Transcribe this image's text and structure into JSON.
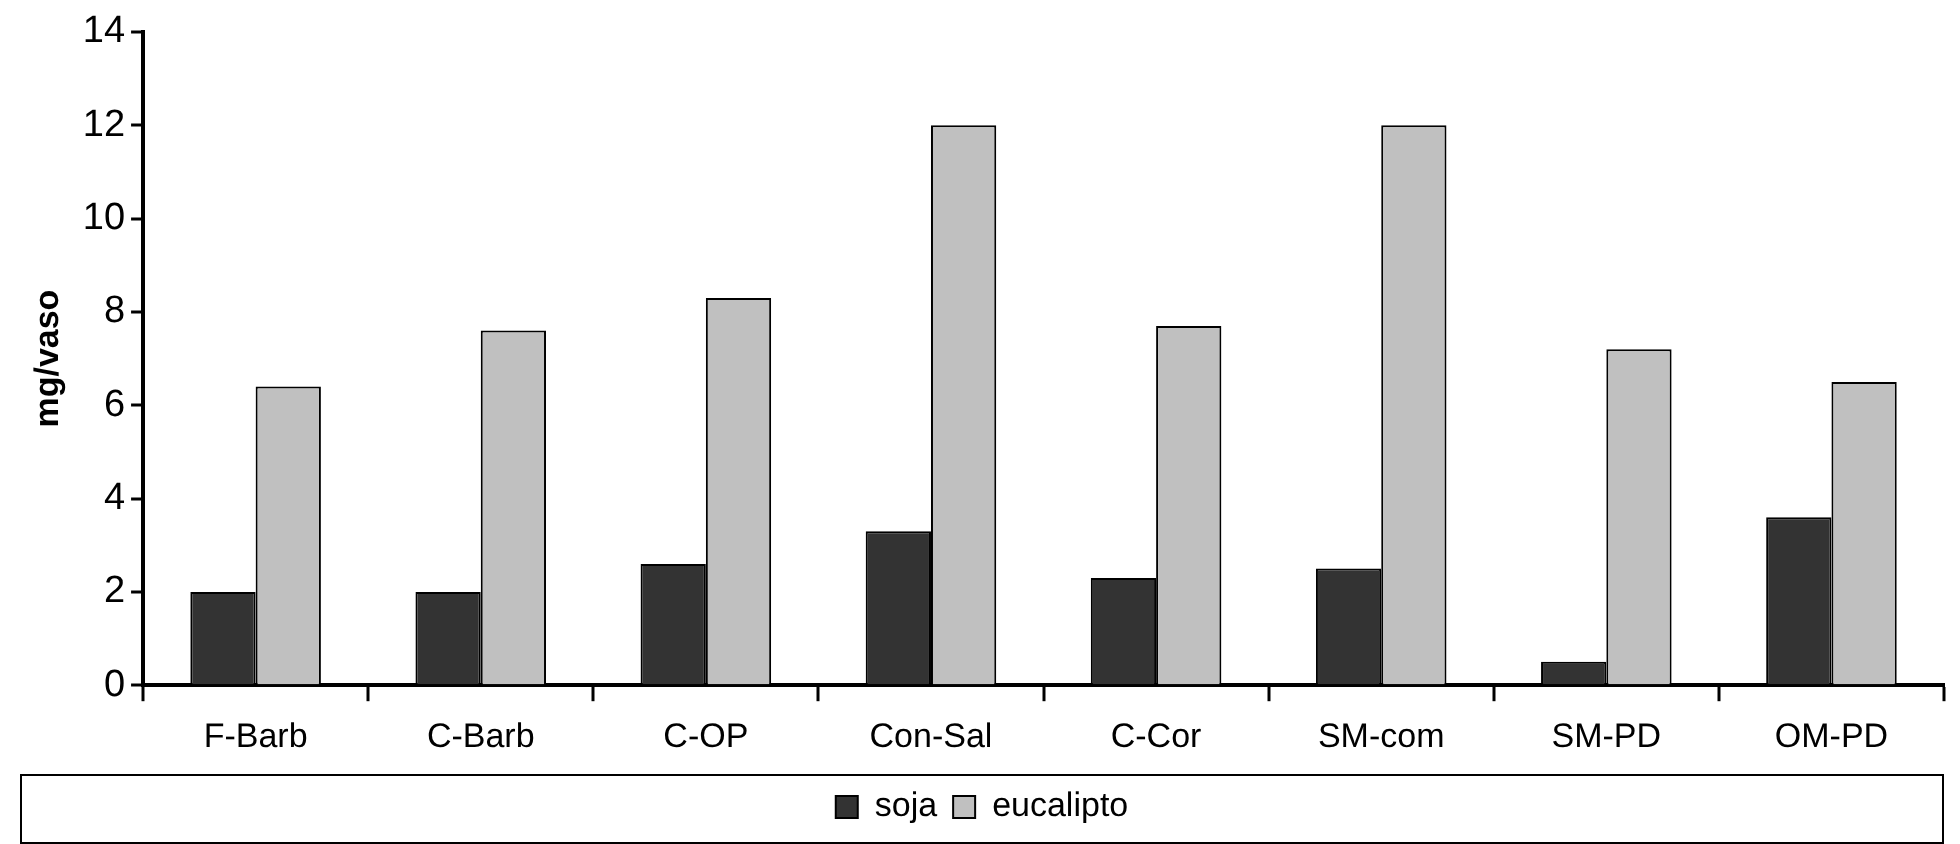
{
  "chart_data": {
    "type": "bar",
    "ylabel": "mg/vaso",
    "categories": [
      "F-Barb",
      "C-Barb",
      "C-OP",
      "Con-Sal",
      "C-Cor",
      "SM-com",
      "SM-PD",
      "OM-PD"
    ],
    "series": [
      {
        "name": "soja",
        "color": "#333333",
        "values": [
          2.0,
          2.0,
          2.6,
          3.3,
          2.3,
          2.5,
          0.5,
          3.6
        ]
      },
      {
        "name": "eucalipto",
        "color": "#c0c0c0",
        "values": [
          6.4,
          7.6,
          8.3,
          12.0,
          7.7,
          12.0,
          7.2,
          6.5
        ]
      }
    ],
    "ylim": [
      0,
      14
    ],
    "yticks": [
      0,
      2,
      4,
      6,
      8,
      10,
      12,
      14
    ],
    "grid": false,
    "legend": "bottom"
  }
}
